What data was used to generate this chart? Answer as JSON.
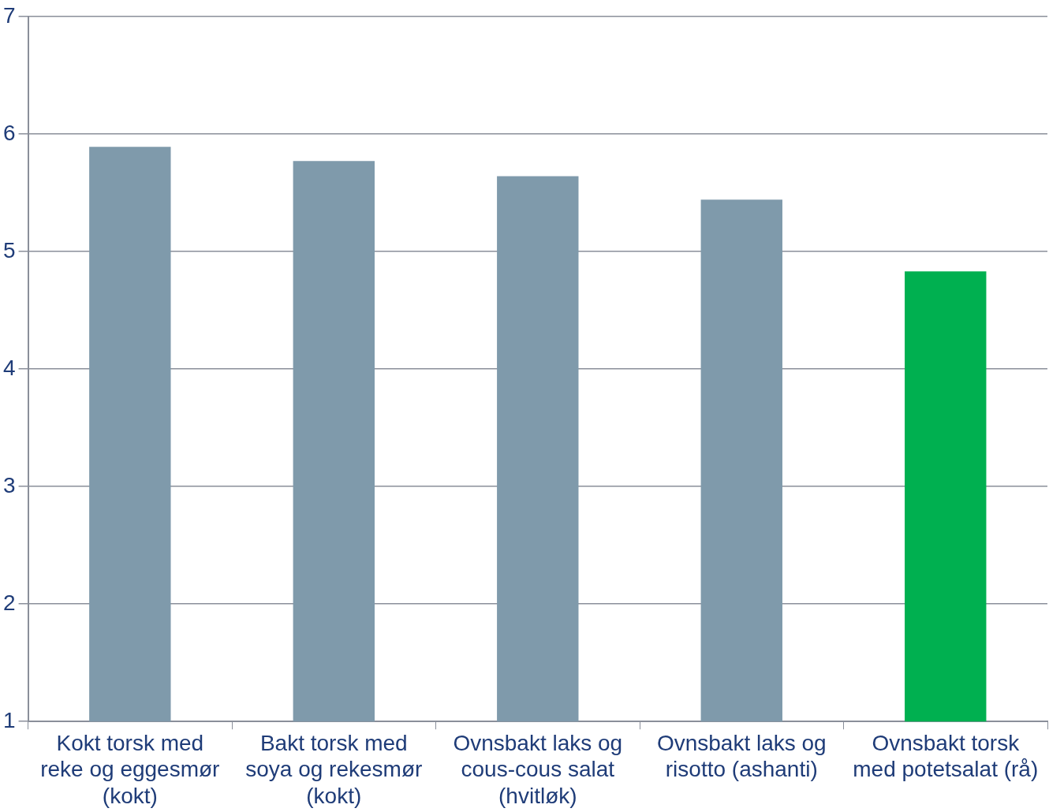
{
  "chart_data": {
    "type": "bar",
    "categories": [
      "Kokt torsk med reke og eggesmør (kokt)",
      "Bakt torsk med soya og rekesmør (kokt)",
      "Ovnsbakt laks og cous-cous salat (hvitløk)",
      "Ovnsbakt laks og risotto (ashanti)",
      "Ovnsbakt torsk med potetsalat (rå)"
    ],
    "values": [
      5.89,
      5.77,
      5.64,
      5.44,
      4.83
    ],
    "colors": [
      "#7f9aab",
      "#7f9aab",
      "#7f9aab",
      "#7f9aab",
      "#00b050"
    ],
    "ylim": [
      1,
      7
    ],
    "yticks": [
      1,
      2,
      3,
      4,
      5,
      6,
      7
    ],
    "grid": "y",
    "legend": false
  }
}
